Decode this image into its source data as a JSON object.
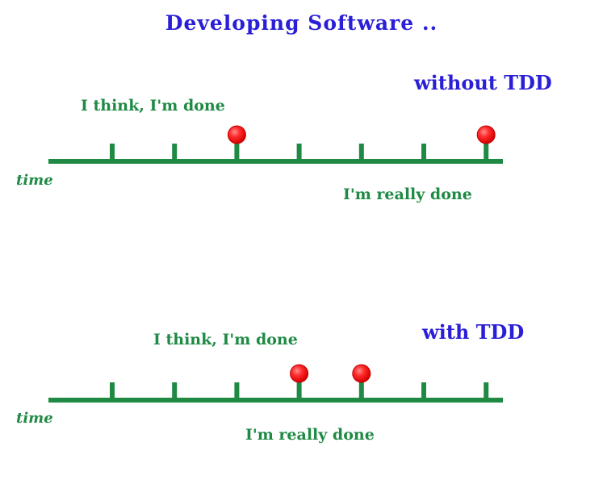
{
  "title": "Developing Software ..",
  "colors": {
    "heading": "#2a1fd6",
    "line": "#1e8a44",
    "marker": "#ff1a1a",
    "marker_stroke": "#c40000"
  },
  "timelines": [
    {
      "label": "without TDD",
      "axis_label": "time",
      "upper_annotation": "I think, I'm done",
      "lower_annotation": "I'm really done",
      "tick_count": 7,
      "marker_ticks": [
        2,
        6
      ]
    },
    {
      "label": "with TDD",
      "axis_label": "time",
      "upper_annotation": "I think, I'm done",
      "lower_annotation": "I'm really done",
      "tick_count": 7,
      "marker_ticks": [
        3,
        4
      ]
    }
  ]
}
